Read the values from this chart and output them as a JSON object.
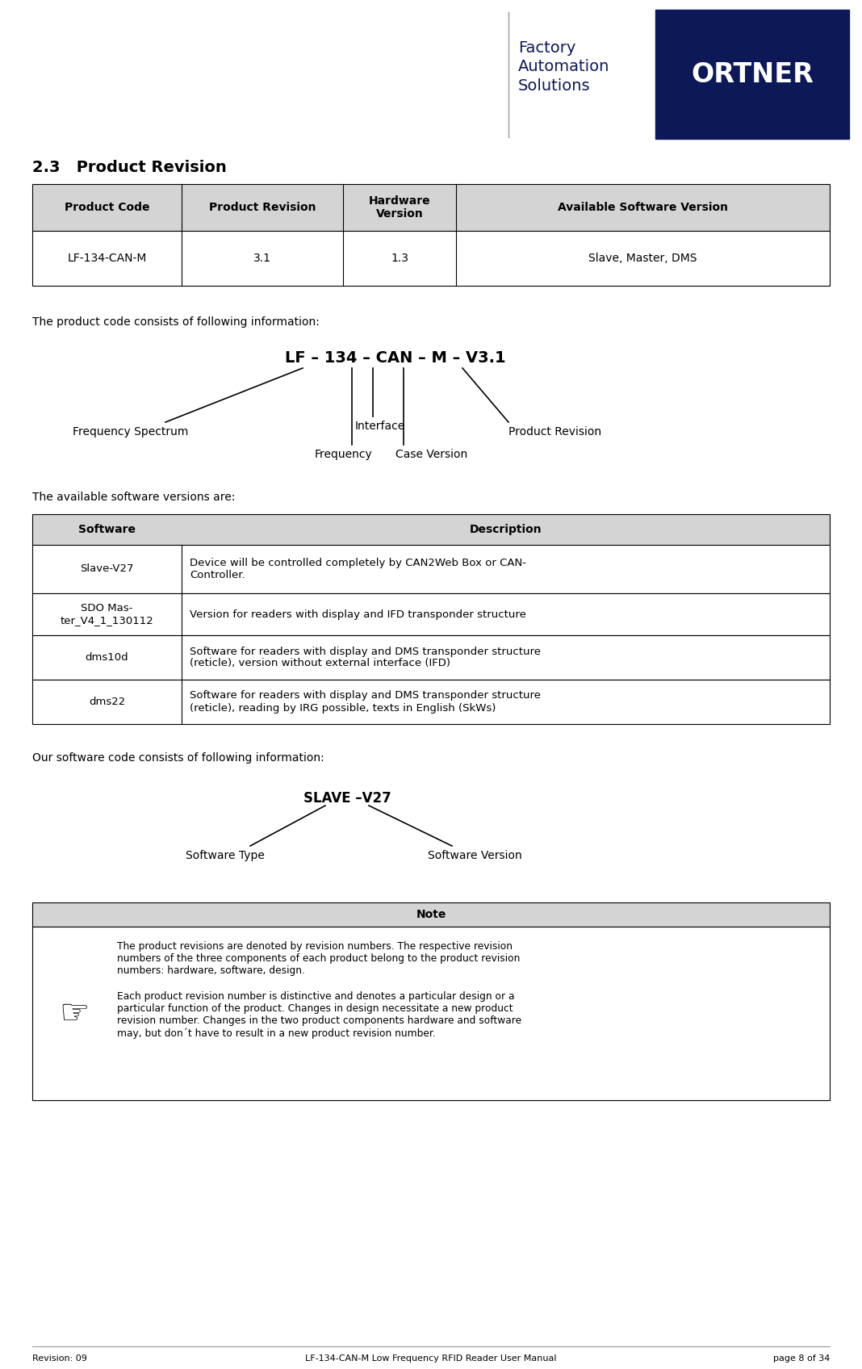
{
  "page_bg": "#ffffff",
  "dark_blue": "#0d1957",
  "section_title": "2.3   Product Revision",
  "table1_headers": [
    "Product Code",
    "Product Revision",
    "Hardware\nVersion",
    "Available Software Version"
  ],
  "table1_row": [
    "LF-134-CAN-M",
    "3.1",
    "1.3",
    "Slave, Master, DMS"
  ],
  "table1_header_bg": "#d4d4d4",
  "table1_border": "#000000",
  "product_code_label": "The product code consists of following information:",
  "product_code_formula": "LF – 134 – CAN – M – V3.1",
  "pc_labels": [
    "Frequency Spectrum",
    "Frequency",
    "Interface",
    "Case Version",
    "Product Revision"
  ],
  "software_label": "The available software versions are:",
  "table2_headers": [
    "Software",
    "Description"
  ],
  "table2_rows": [
    [
      "Slave-V27",
      "Device will be controlled completely by CAN2Web Box or CAN-\nController."
    ],
    [
      "SDO Mas-\nter_V4_1_130112",
      "Version for readers with display and IFD transponder structure"
    ],
    [
      "dms10d",
      "Software for readers with display and DMS transponder structure\n(reticle), version without external interface (IFD)"
    ],
    [
      "dms22",
      "Software for readers with display and DMS transponder structure\n(reticle), reading by IRG possible, texts in English (SkWs)"
    ]
  ],
  "table2_header_bg": "#d4d4d4",
  "software_code_label": "Our software code consists of following information:",
  "software_formula": "SLAVE –V27",
  "sw_labels": [
    "Software Type",
    "Software Version"
  ],
  "note_header": "Note",
  "note_header_bg": "#d4d4d4",
  "note_text1": "The product revisions are denoted by revision numbers. The respective revision\nnumbers of the three components of each product belong to the product revision\nnumbers: hardware, software, design.",
  "note_text2": "Each product revision number is distinctive and denotes a particular design or a\nparticular function of the product. Changes in design necessitate a new product\nrevision number. Changes in the two product components hardware and software\nmay, but don´t have to result in a new product revision number.",
  "footer_left": "Revision: 09",
  "footer_center": "LF-134-CAN-M Low Frequency RFID Reader User Manual",
  "footer_right": "page 8 of 34",
  "factory_text": "Factory\nAutomation\nSolutions"
}
